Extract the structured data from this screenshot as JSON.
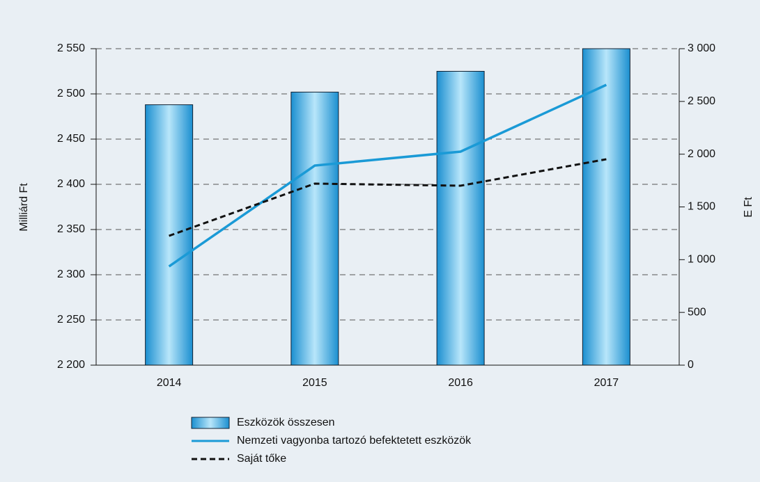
{
  "chart_data": {
    "type": "bar",
    "categories": [
      "2014",
      "2015",
      "2016",
      "2017"
    ],
    "y_label": "Milliárd Ft",
    "y2_label": "E Ft",
    "ylim": [
      2200,
      2550
    ],
    "yticks": [
      {
        "value": 2200,
        "label": "2 200"
      },
      {
        "value": 2250,
        "label": "2 250"
      },
      {
        "value": 2300,
        "label": "2 300"
      },
      {
        "value": 2350,
        "label": "2 350"
      },
      {
        "value": 2400,
        "label": "2 400"
      },
      {
        "value": 2450,
        "label": "2 450"
      },
      {
        "value": 2500,
        "label": "2 500"
      },
      {
        "value": 2550,
        "label": "2 550"
      }
    ],
    "y2lim": [
      0,
      3000
    ],
    "y2ticks": [
      0,
      500,
      {
        "value": 1000,
        "label": "1 000"
      },
      {
        "value": 1500,
        "label": "1 500"
      },
      {
        "value": 2000,
        "label": "2 000"
      },
      {
        "value": 2500,
        "label": "2 500"
      },
      {
        "value": 3000,
        "label": "3 000"
      }
    ],
    "grid": true,
    "series": [
      {
        "name": "Eszközök összesen",
        "type": "bar",
        "color": "#29a9e0",
        "values": [
          2488,
          2502,
          2525,
          2550
        ]
      },
      {
        "name": "Nemzeti vagyonba tartozó befektetett eszközök",
        "type": "line",
        "axis": "y2",
        "color": "#1a9ad6",
        "values": [
          936,
          1892,
          2024,
          2657
        ]
      },
      {
        "name": "Saját tőke",
        "type": "line",
        "axis": "y2",
        "dashed": true,
        "color": "#111111",
        "values": [
          1226,
          1721,
          1701,
          1952
        ]
      }
    ]
  }
}
